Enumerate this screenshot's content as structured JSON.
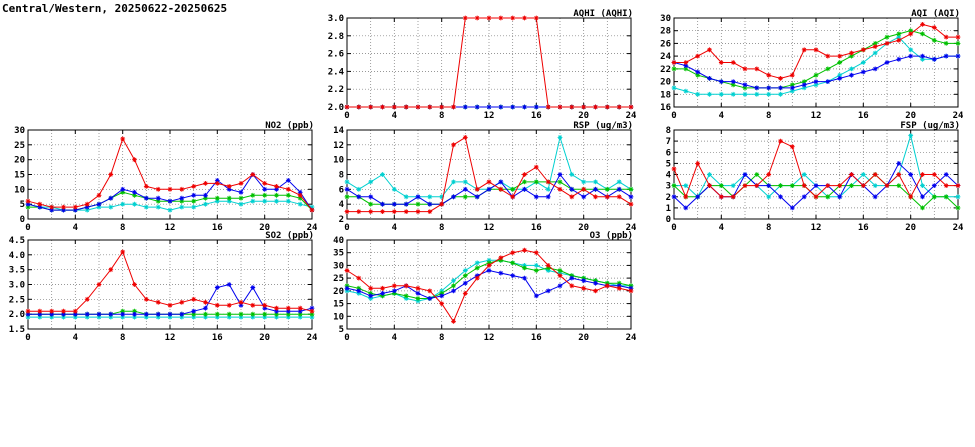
{
  "page": {
    "title": "Central/Western, 20250622-20250625"
  },
  "chart_data": [
    {
      "type": "line",
      "title": "AQHI (AQHI)",
      "xlabel": "",
      "ylabel": "",
      "xlim": [
        0,
        24
      ],
      "xticks": [
        0,
        4,
        8,
        12,
        16,
        20,
        24
      ],
      "ylim": [
        2.0,
        3.0
      ],
      "ytick_step": 0.2,
      "y_decimals": 1,
      "grid": true,
      "legend": "none",
      "x": [
        0,
        1,
        2,
        3,
        4,
        5,
        6,
        7,
        8,
        9,
        10,
        11,
        12,
        13,
        14,
        15,
        16,
        17,
        18,
        19,
        20,
        21,
        22,
        23,
        24
      ],
      "series": [
        {
          "name": "red",
          "color": "#ee0000",
          "values": [
            2,
            2,
            2,
            2,
            2,
            2,
            2,
            2,
            2,
            2,
            3,
            3,
            3,
            3,
            3,
            3,
            3,
            2,
            2,
            2,
            2,
            2,
            2,
            2,
            2
          ]
        },
        {
          "name": "blue",
          "color": "#0000ee",
          "values": [
            2,
            2,
            2,
            2,
            2,
            2,
            2,
            2,
            2,
            2,
            2,
            2,
            2,
            2,
            2,
            2,
            2,
            2,
            2,
            2,
            2,
            2,
            2,
            2,
            2
          ]
        },
        {
          "name": "green",
          "color": "#00c000",
          "values": [
            2,
            2,
            2,
            2,
            2,
            2,
            2,
            2,
            2,
            2,
            2,
            2,
            2,
            2,
            2,
            2,
            2,
            2,
            2,
            2,
            2,
            2,
            2,
            2,
            2
          ]
        },
        {
          "name": "cyan",
          "color": "#00d0d0",
          "values": [
            2,
            2,
            2,
            2,
            2,
            2,
            2,
            2,
            2,
            2,
            2,
            2,
            2,
            2,
            2,
            2,
            2,
            2,
            2,
            2,
            2,
            2,
            2,
            2,
            2
          ]
        }
      ]
    },
    {
      "type": "line",
      "title": "AQI (AQI)",
      "xlabel": "",
      "ylabel": "",
      "xlim": [
        0,
        24
      ],
      "xticks": [
        0,
        4,
        8,
        12,
        16,
        20,
        24
      ],
      "ylim": [
        16,
        30
      ],
      "ytick_step": 2,
      "y_decimals": 0,
      "grid": true,
      "legend": "none",
      "x": [
        0,
        1,
        2,
        3,
        4,
        5,
        6,
        7,
        8,
        9,
        10,
        11,
        12,
        13,
        14,
        15,
        16,
        17,
        18,
        19,
        20,
        21,
        22,
        23,
        24
      ],
      "series": [
        {
          "name": "red",
          "color": "#ee0000",
          "values": [
            23,
            23,
            24,
            25,
            23,
            23,
            22,
            22,
            21,
            20.5,
            21,
            25,
            25,
            24,
            24,
            24.5,
            25,
            25.5,
            26,
            26.5,
            27.5,
            29,
            28.5,
            27,
            27
          ]
        },
        {
          "name": "blue",
          "color": "#0000ee",
          "values": [
            23,
            22.5,
            21.5,
            20.5,
            20,
            20,
            19.5,
            19,
            19,
            19,
            19,
            19.5,
            20,
            20,
            20.5,
            21,
            21.5,
            22,
            23,
            23.5,
            24,
            24,
            23.5,
            24,
            24
          ]
        },
        {
          "name": "green",
          "color": "#00c000",
          "values": [
            22,
            22,
            21,
            20.5,
            20,
            19.5,
            19,
            19,
            19,
            19,
            19.5,
            20,
            21,
            22,
            23,
            24,
            25,
            26,
            27,
            27.5,
            28,
            27.5,
            26.5,
            26,
            26
          ]
        },
        {
          "name": "cyan",
          "color": "#00d0d0",
          "values": [
            19,
            18.5,
            18,
            18,
            18,
            18,
            18,
            18,
            18,
            18,
            18.5,
            19,
            19.5,
            20,
            21,
            22,
            23,
            24.5,
            26,
            27,
            25,
            23.5,
            23.5,
            24,
            24
          ]
        }
      ]
    },
    {
      "type": "line",
      "title": "NO2 (ppb)",
      "xlabel": "",
      "ylabel": "",
      "xlim": [
        0,
        24
      ],
      "xticks": [
        0,
        4,
        8,
        12,
        16,
        20,
        24
      ],
      "ylim": [
        0,
        30
      ],
      "ytick_step": 5,
      "y_decimals": 0,
      "grid": true,
      "legend": "none",
      "x": [
        0,
        1,
        2,
        3,
        4,
        5,
        6,
        7,
        8,
        9,
        10,
        11,
        12,
        13,
        14,
        15,
        16,
        17,
        18,
        19,
        20,
        21,
        22,
        23,
        24
      ],
      "series": [
        {
          "name": "red",
          "color": "#ee0000",
          "values": [
            6,
            5,
            4,
            4,
            4,
            5,
            8,
            15,
            27,
            20,
            11,
            10,
            10,
            10,
            11,
            12,
            12,
            11,
            12,
            15,
            12,
            11,
            10,
            8,
            3
          ]
        },
        {
          "name": "blue",
          "color": "#0000ee",
          "values": [
            5,
            4,
            3,
            3,
            3,
            4,
            5,
            7,
            10,
            9,
            7,
            7,
            6,
            7,
            8,
            8,
            13,
            10,
            9,
            15,
            10,
            10,
            13,
            9,
            3
          ]
        },
        {
          "name": "green",
          "color": "#00c000",
          "values": [
            4,
            4,
            3,
            3,
            3,
            4,
            5,
            7,
            9,
            8,
            7,
            6,
            6,
            6,
            6,
            7,
            7,
            7,
            7,
            8,
            8,
            8,
            8,
            7,
            3
          ]
        },
        {
          "name": "cyan",
          "color": "#00d0d0",
          "values": [
            5,
            4,
            4,
            3,
            3,
            3,
            4,
            4,
            5,
            5,
            4,
            4,
            3,
            4,
            4,
            5,
            6,
            6,
            5,
            6,
            6,
            6,
            6,
            5,
            4
          ]
        }
      ]
    },
    {
      "type": "line",
      "title": "RSP (ug/m3)",
      "xlabel": "",
      "ylabel": "",
      "xlim": [
        0,
        24
      ],
      "xticks": [
        0,
        4,
        8,
        12,
        16,
        20,
        24
      ],
      "ylim": [
        2,
        14
      ],
      "ytick_step": 2,
      "y_decimals": 0,
      "grid": true,
      "legend": "none",
      "x": [
        0,
        1,
        2,
        3,
        4,
        5,
        6,
        7,
        8,
        9,
        10,
        11,
        12,
        13,
        14,
        15,
        16,
        17,
        18,
        19,
        20,
        21,
        22,
        23,
        24
      ],
      "series": [
        {
          "name": "red",
          "color": "#ee0000",
          "values": [
            3,
            3,
            3,
            3,
            3,
            3,
            3,
            3,
            4,
            12,
            13,
            6,
            7,
            6,
            5,
            8,
            9,
            7,
            6,
            5,
            6,
            5,
            5,
            5,
            4
          ]
        },
        {
          "name": "blue",
          "color": "#0000ee",
          "values": [
            6,
            5,
            5,
            4,
            4,
            4,
            5,
            4,
            4,
            5,
            6,
            5,
            6,
            7,
            5,
            6,
            5,
            5,
            8,
            6,
            5,
            6,
            5,
            6,
            5
          ]
        },
        {
          "name": "green",
          "color": "#00c000",
          "values": [
            5,
            5,
            4,
            4,
            4,
            4,
            4,
            4,
            4,
            5,
            5,
            5,
            6,
            6,
            6,
            7,
            7,
            7,
            7,
            6,
            6,
            6,
            6,
            6,
            6
          ]
        },
        {
          "name": "cyan",
          "color": "#00d0d0",
          "values": [
            7,
            6,
            7,
            8,
            6,
            5,
            5,
            5,
            5,
            7,
            7,
            6,
            6,
            7,
            6,
            6,
            7,
            6,
            13,
            8,
            7,
            7,
            6,
            7,
            6
          ]
        }
      ]
    },
    {
      "type": "line",
      "title": "FSP (ug/m3)",
      "xlabel": "",
      "ylabel": "",
      "xlim": [
        0,
        24
      ],
      "xticks": [
        0,
        4,
        8,
        12,
        16,
        20,
        24
      ],
      "ylim": [
        0,
        8
      ],
      "ytick_step": 1,
      "y_decimals": 0,
      "grid": true,
      "legend": "none",
      "x": [
        0,
        1,
        2,
        3,
        4,
        5,
        6,
        7,
        8,
        9,
        10,
        11,
        12,
        13,
        14,
        15,
        16,
        17,
        18,
        19,
        20,
        21,
        22,
        23,
        24
      ],
      "series": [
        {
          "name": "red",
          "color": "#ee0000",
          "values": [
            4.5,
            2,
            5,
            3,
            2,
            2,
            3,
            3,
            4,
            7,
            6.5,
            3,
            2,
            3,
            3,
            4,
            3,
            4,
            3,
            4,
            2,
            4,
            4,
            3,
            3
          ]
        },
        {
          "name": "blue",
          "color": "#0000ee",
          "values": [
            2,
            1,
            2,
            3,
            2,
            2,
            4,
            3,
            3,
            2,
            1,
            2,
            3,
            3,
            2,
            4,
            3,
            2,
            3,
            5,
            4,
            2,
            3,
            4,
            3
          ]
        },
        {
          "name": "green",
          "color": "#00c000",
          "values": [
            3,
            2,
            2,
            3,
            3,
            2,
            3,
            4,
            3,
            3,
            3,
            3,
            2,
            2,
            3,
            3,
            3,
            4,
            3,
            3,
            2,
            1,
            2,
            2,
            1
          ]
        },
        {
          "name": "cyan",
          "color": "#00d0d0",
          "values": [
            3,
            3,
            2,
            4,
            3,
            3,
            4,
            3,
            2,
            3,
            3,
            4,
            3,
            2,
            2,
            3,
            4,
            3,
            3,
            4,
            7.5,
            3,
            2,
            2,
            2
          ]
        }
      ]
    },
    {
      "type": "line",
      "title": "SO2 (ppb)",
      "xlabel": "",
      "ylabel": "",
      "xlim": [
        0,
        24
      ],
      "xticks": [
        0,
        4,
        8,
        12,
        16,
        20,
        24
      ],
      "ylim": [
        1.5,
        4.5
      ],
      "ytick_step": 0.5,
      "y_decimals": 1,
      "grid": true,
      "legend": "none",
      "x": [
        0,
        1,
        2,
        3,
        4,
        5,
        6,
        7,
        8,
        9,
        10,
        11,
        12,
        13,
        14,
        15,
        16,
        17,
        18,
        19,
        20,
        21,
        22,
        23,
        24
      ],
      "series": [
        {
          "name": "red",
          "color": "#ee0000",
          "values": [
            2.1,
            2.1,
            2.1,
            2.1,
            2.1,
            2.5,
            3.0,
            3.5,
            4.1,
            3.0,
            2.5,
            2.4,
            2.3,
            2.4,
            2.5,
            2.4,
            2.3,
            2.3,
            2.4,
            2.3,
            2.3,
            2.2,
            2.2,
            2.2,
            2.1
          ]
        },
        {
          "name": "blue",
          "color": "#0000ee",
          "values": [
            2.0,
            2.0,
            2.0,
            2.0,
            2.0,
            2.0,
            2.0,
            2.0,
            2.0,
            2.0,
            2.0,
            2.0,
            2.0,
            2.0,
            2.1,
            2.2,
            2.9,
            3.0,
            2.3,
            2.9,
            2.2,
            2.1,
            2.1,
            2.1,
            2.2
          ]
        },
        {
          "name": "green",
          "color": "#00c000",
          "values": [
            2.0,
            2.0,
            2.0,
            2.0,
            2.0,
            2.0,
            2.0,
            2.0,
            2.1,
            2.1,
            2.0,
            2.0,
            2.0,
            2.0,
            2.0,
            2.0,
            2.0,
            2.0,
            2.0,
            2.0,
            2.0,
            2.0,
            2.0,
            2.0,
            2.0
          ]
        },
        {
          "name": "cyan",
          "color": "#00d0d0",
          "values": [
            1.9,
            1.9,
            1.9,
            1.9,
            1.9,
            1.9,
            1.9,
            1.9,
            1.9,
            1.9,
            1.9,
            1.9,
            1.9,
            1.9,
            1.9,
            1.9,
            1.9,
            1.9,
            1.9,
            1.9,
            1.9,
            1.9,
            1.9,
            1.9,
            1.9
          ]
        }
      ]
    },
    {
      "type": "line",
      "title": "O3 (ppb)",
      "xlabel": "",
      "ylabel": "",
      "xlim": [
        0,
        24
      ],
      "xticks": [
        0,
        4,
        8,
        12,
        16,
        20,
        24
      ],
      "ylim": [
        5,
        40
      ],
      "ytick_step": 5,
      "y_decimals": 0,
      "grid": true,
      "legend": "none",
      "x": [
        0,
        1,
        2,
        3,
        4,
        5,
        6,
        7,
        8,
        9,
        10,
        11,
        12,
        13,
        14,
        15,
        16,
        17,
        18,
        19,
        20,
        21,
        22,
        23,
        24
      ],
      "series": [
        {
          "name": "red",
          "color": "#ee0000",
          "values": [
            28,
            25,
            21,
            21,
            22,
            22,
            21,
            20,
            15,
            8,
            19,
            25,
            30,
            33,
            35,
            36,
            35,
            30,
            26,
            22,
            21,
            20,
            22,
            21,
            20
          ]
        },
        {
          "name": "blue",
          "color": "#0000ee",
          "values": [
            21,
            20,
            18,
            19,
            20,
            22,
            19,
            17,
            18,
            20,
            23,
            26,
            28,
            27,
            26,
            25,
            18,
            20,
            22,
            25,
            24,
            23,
            22,
            22,
            21
          ]
        },
        {
          "name": "green",
          "color": "#00c000",
          "values": [
            22,
            21,
            19,
            18,
            19,
            18,
            17,
            17,
            19,
            22,
            26,
            29,
            31,
            32,
            31,
            29,
            28,
            29,
            28,
            26,
            25,
            24,
            23,
            23,
            22
          ]
        },
        {
          "name": "cyan",
          "color": "#00d0d0",
          "values": [
            20,
            19,
            17,
            18,
            19,
            17,
            16,
            17,
            20,
            24,
            28,
            31,
            32,
            32,
            31,
            30,
            30,
            28,
            27,
            26,
            25,
            24,
            23,
            22,
            22
          ]
        }
      ]
    }
  ]
}
